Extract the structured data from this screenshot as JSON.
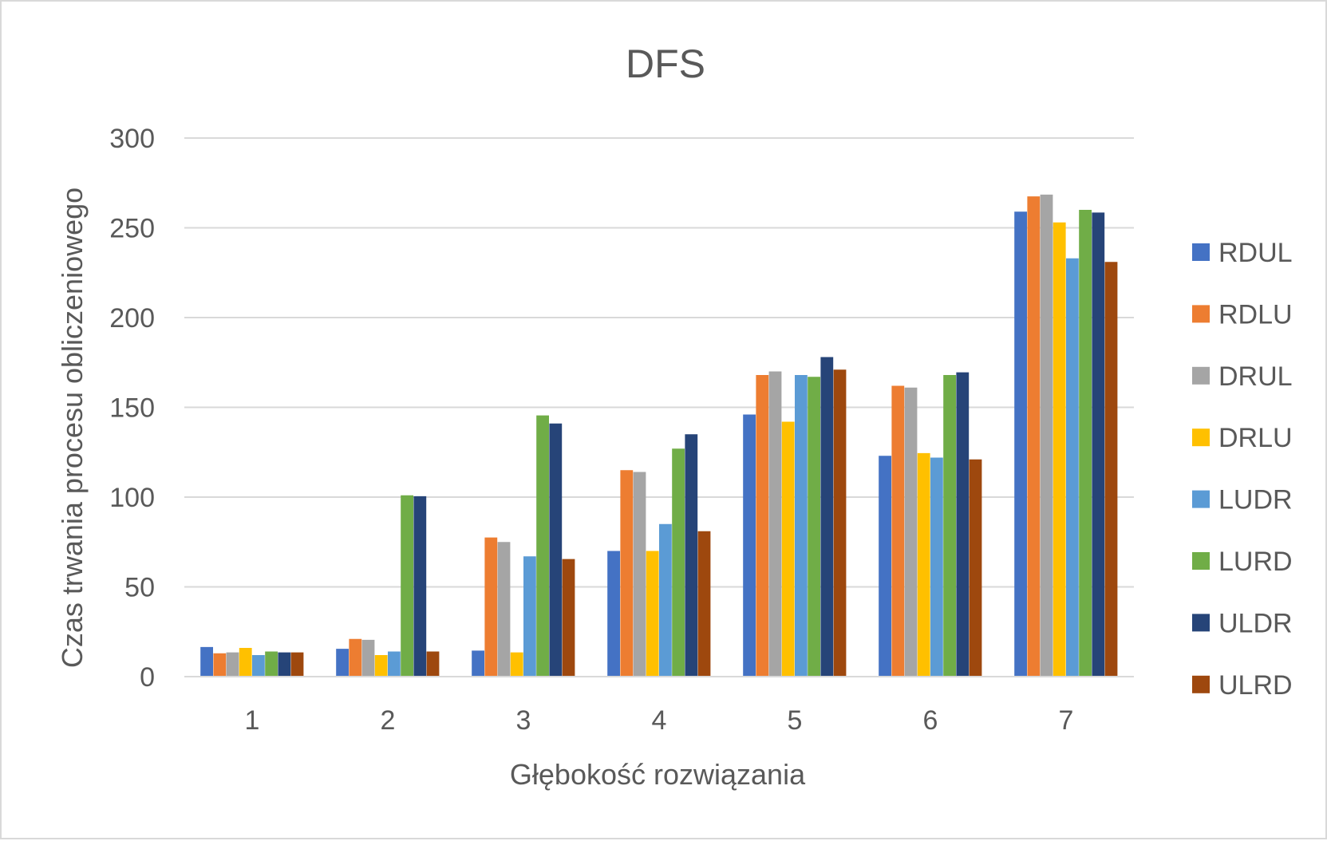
{
  "chart_data": {
    "type": "bar",
    "title": "DFS",
    "xlabel": "Głębokość rozwiązania",
    "ylabel": "Czas trwania procesu obliczeniowego",
    "ylim": [
      0,
      300
    ],
    "yticks": [
      0,
      50,
      100,
      150,
      200,
      250,
      300
    ],
    "grid": true,
    "legend_position": "right",
    "categories": [
      "1",
      "2",
      "3",
      "4",
      "5",
      "6",
      "7"
    ],
    "series": [
      {
        "name": "RDUL",
        "color": "#4472C4",
        "values": [
          16.5,
          15.5,
          14.5,
          70,
          146,
          123,
          259
        ]
      },
      {
        "name": "RDLU",
        "color": "#ED7D31",
        "values": [
          13,
          21,
          77.5,
          115,
          168,
          162,
          267.5
        ]
      },
      {
        "name": "DRUL",
        "color": "#A5A5A5",
        "values": [
          13.5,
          20.5,
          75,
          114,
          170,
          161,
          268.5
        ]
      },
      {
        "name": "DRLU",
        "color": "#FFC000",
        "values": [
          16,
          12,
          13.5,
          70,
          142,
          124.5,
          253
        ]
      },
      {
        "name": "LUDR",
        "color": "#5B9BD5",
        "values": [
          12,
          14,
          67,
          85,
          168,
          122,
          233
        ]
      },
      {
        "name": "LURD",
        "color": "#70AD47",
        "values": [
          14,
          101,
          145.5,
          127,
          167,
          168,
          260
        ]
      },
      {
        "name": "ULDR",
        "color": "#264478",
        "values": [
          13.5,
          100.5,
          141,
          135,
          178,
          169.5,
          258.5
        ]
      },
      {
        "name": "ULRD",
        "color": "#9E480E",
        "values": [
          13.5,
          14,
          65.5,
          81,
          171,
          121,
          231
        ]
      }
    ]
  }
}
